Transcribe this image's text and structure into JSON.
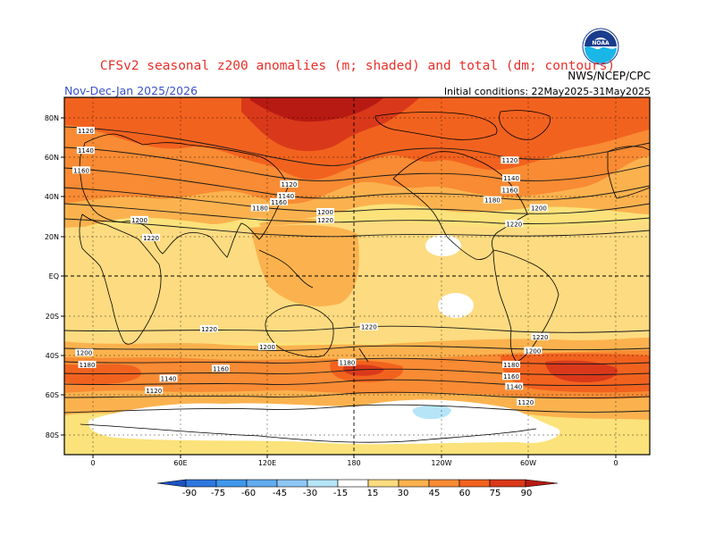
{
  "header": {
    "title": "CFSv2 seasonal z200 anomalies (m; shaded) and total (dm; contours)",
    "agency": "NWS/NCEP/CPC",
    "period": "Nov-Dec-Jan 2025/2026",
    "initial_conditions": "Initial conditions: 22May2025-31May2025",
    "logo_text": "NOAA"
  },
  "map": {
    "lat_labels": [
      "80N",
      "60N",
      "40N",
      "20N",
      "EQ",
      "20S",
      "40S",
      "60S",
      "80S"
    ],
    "lon_labels": [
      "0",
      "60E",
      "120E",
      "180",
      "120W",
      "60W",
      "0"
    ],
    "contour_labels": [
      {
        "text": "1120",
        "lon": -5,
        "lat": 73
      },
      {
        "text": "1140",
        "lon": -5,
        "lat": 63
      },
      {
        "text": "1160",
        "lon": -8,
        "lat": 53
      },
      {
        "text": "1200",
        "lon": 32,
        "lat": 28
      },
      {
        "text": "1220",
        "lon": 40,
        "lat": 19
      },
      {
        "text": "1120",
        "lon": 135,
        "lat": 46
      },
      {
        "text": "1140",
        "lon": 133,
        "lat": 40
      },
      {
        "text": "1160",
        "lon": 128,
        "lat": 37
      },
      {
        "text": "1180",
        "lon": 115,
        "lat": 34
      },
      {
        "text": "1200",
        "lon": 160,
        "lat": 32
      },
      {
        "text": "1220",
        "lon": 160,
        "lat": 28
      },
      {
        "text": "1120",
        "lon": 287,
        "lat": 58
      },
      {
        "text": "1140",
        "lon": 288,
        "lat": 49
      },
      {
        "text": "1160",
        "lon": 287,
        "lat": 43
      },
      {
        "text": "1180",
        "lon": 275,
        "lat": 38
      },
      {
        "text": "1200",
        "lon": 307,
        "lat": 34
      },
      {
        "text": "1220",
        "lon": 290,
        "lat": 26
      },
      {
        "text": "1220",
        "lon": 80,
        "lat": -27
      },
      {
        "text": "1220",
        "lon": 190,
        "lat": -26
      },
      {
        "text": "1220",
        "lon": 308,
        "lat": -31
      },
      {
        "text": "1200",
        "lon": -6,
        "lat": -39
      },
      {
        "text": "1200",
        "lon": 120,
        "lat": -36
      },
      {
        "text": "1200",
        "lon": 303,
        "lat": -38
      },
      {
        "text": "1180",
        "lon": -4,
        "lat": -45
      },
      {
        "text": "1180",
        "lon": 175,
        "lat": -44
      },
      {
        "text": "1180",
        "lon": 288,
        "lat": -45
      },
      {
        "text": "1160",
        "lon": 88,
        "lat": -47
      },
      {
        "text": "1160",
        "lon": 288,
        "lat": -51
      },
      {
        "text": "1140",
        "lon": 52,
        "lat": -52
      },
      {
        "text": "1140",
        "lon": 290,
        "lat": -56
      },
      {
        "text": "1120",
        "lon": 42,
        "lat": -58
      },
      {
        "text": "1120",
        "lon": 298,
        "lat": -64
      }
    ],
    "background_color": "#fbe27a",
    "anomaly_areas": [
      {
        "level": "15–30",
        "color": "#fddb80",
        "lonmin": -20,
        "lonmax": 340,
        "latmin": -70,
        "latmax": 90
      },
      {
        "level": "30–45",
        "color": "#fbb24e",
        "lonmin": -20,
        "lonmax": 340,
        "latmin": 20,
        "latmax": 90
      },
      {
        "level": "45–60",
        "color": "#f88b33",
        "lonmin": -20,
        "lonmax": 340,
        "latmin": 40,
        "latmax": 90
      },
      {
        "level": "60–75",
        "color": "#f2621f",
        "lonmin": -20,
        "lonmax": 340,
        "latmin": 60,
        "latmax": 90
      },
      {
        "level": "75–90",
        "color": "#d9391a",
        "lonmin": 140,
        "lonmax": 220,
        "latmin": 72,
        "latmax": 90
      },
      {
        "level": ">90",
        "color": "#b71a12",
        "lonmin": 150,
        "lonmax": 210,
        "latmin": 80,
        "latmax": 90
      },
      {
        "level": "30–45",
        "color": "#fbb24e",
        "lonmin": -20,
        "lonmax": 340,
        "latmin": -60,
        "latmax": -38
      },
      {
        "level": "45–60",
        "color": "#f88b33",
        "lonmin": -20,
        "lonmax": 340,
        "latmin": -56,
        "latmax": -42
      },
      {
        "level": "60–75",
        "color": "#f2621f",
        "lonmin": 270,
        "lonmax": 340,
        "latmin": -54,
        "latmax": -44
      },
      {
        "level": "75–90",
        "color": "#d9391a",
        "lonmin": 300,
        "lonmax": 330,
        "latmin": -52,
        "latmax": -46
      },
      {
        "level": "<15",
        "color": "#ffffff",
        "lonmin": -20,
        "lonmax": 340,
        "latmin": -90,
        "latmax": -66
      },
      {
        "level": "-15–0",
        "color": "#b6e5f8",
        "lonmin": 210,
        "lonmax": 240,
        "latmin": -70,
        "latmax": -66
      },
      {
        "level": "<15",
        "color": "#ffffff",
        "lonmin": 230,
        "lonmax": 250,
        "latmin": 12,
        "latmax": 20
      },
      {
        "level": "<15",
        "color": "#ffffff",
        "lonmin": 230,
        "lonmax": 248,
        "latmin": -20,
        "latmax": -10
      }
    ]
  },
  "colorbar": {
    "labels": [
      "-90",
      "-75",
      "-60",
      "-45",
      "-30",
      "-15",
      "15",
      "30",
      "45",
      "60",
      "75",
      "90"
    ],
    "colors": [
      "#1b53c4",
      "#2e77e0",
      "#4096ea",
      "#62acef",
      "#8ec6f4",
      "#b6e5f8",
      "#ffffff",
      "#fddb80",
      "#fbb24e",
      "#f88b33",
      "#f2621f",
      "#d9391a",
      "#b71a12"
    ]
  }
}
